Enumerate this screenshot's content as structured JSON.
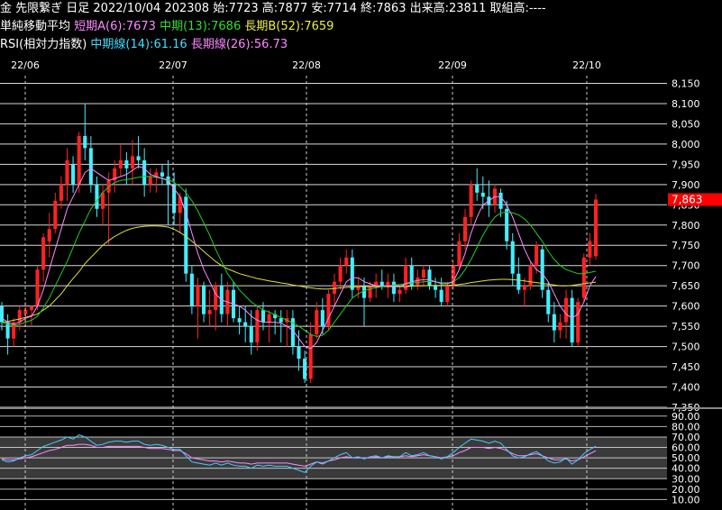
{
  "header": {
    "line1": "金 先限繋ぎ 日足 2022/10/04 202308 始:7723 高:7877 安:7714 終:7863 出来高:23811 取組高:----",
    "line2_title": "単純移動平均",
    "ma_short": "短期A(6):7673",
    "ma_mid": "中期(13):7686",
    "ma_long": "長期B(52):7659",
    "line3_title": "RSI(相対力指数)",
    "rsi_mid": "中期線(14):61.16",
    "rsi_long": "長期線(26):56.73"
  },
  "x_labels": [
    "22/06",
    "22/07",
    "22/08",
    "22/09",
    "22/10"
  ],
  "price_axis_labels": [
    "8,150",
    "8,100",
    "8,050",
    "8,000",
    "7,950",
    "7,900",
    "7,850",
    "7,800",
    "7,750",
    "7,700",
    "7,650",
    "7,600",
    "7,550",
    "7,500",
    "7,450",
    "7,400",
    "7,350"
  ],
  "rsi_axis_labels": [
    "90.00",
    "80.00",
    "70.00",
    "60.00",
    "50.00",
    "40.00",
    "30.00",
    "20.00",
    "10.00"
  ],
  "last_price_label": "7,863",
  "colors": {
    "up": "#ff2222",
    "down": "#44eeff",
    "ma_short": "#ff88ff",
    "ma_mid": "#22cc22",
    "ma_long": "#dddd44",
    "rsi_mid": "#44ccff",
    "rsi_long": "#ff88ff",
    "grid": "#ffffff",
    "price_tag": "#ff0000"
  },
  "chart_data": {
    "type": "candlestick",
    "ylim": [
      7350,
      8160
    ],
    "rsi_ylim": [
      0,
      95
    ],
    "candles": [
      [
        7600,
        7610,
        7540,
        7560
      ],
      [
        7560,
        7580,
        7480,
        7520
      ],
      [
        7520,
        7570,
        7500,
        7560
      ],
      [
        7560,
        7600,
        7540,
        7590
      ],
      [
        7580,
        7610,
        7550,
        7590
      ],
      [
        7590,
        7600,
        7550,
        7600
      ],
      [
        7600,
        7700,
        7590,
        7690
      ],
      [
        7690,
        7780,
        7660,
        7770
      ],
      [
        7760,
        7830,
        7720,
        7790
      ],
      [
        7790,
        7880,
        7780,
        7860
      ],
      [
        7860,
        7920,
        7840,
        7900
      ],
      [
        7900,
        7990,
        7860,
        7960
      ],
      [
        7950,
        7970,
        7880,
        7900
      ],
      [
        7900,
        8030,
        7880,
        8020
      ],
      [
        8020,
        8100,
        7960,
        7990
      ],
      [
        7990,
        8020,
        7880,
        7900
      ],
      [
        7900,
        7920,
        7820,
        7840
      ],
      [
        7840,
        7900,
        7800,
        7880
      ],
      [
        7880,
        7930,
        7750,
        7910
      ],
      [
        7910,
        7960,
        7880,
        7940
      ],
      [
        7940,
        8000,
        7920,
        7960
      ],
      [
        7960,
        7980,
        7900,
        7940
      ],
      [
        7940,
        8010,
        7900,
        7970
      ],
      [
        7970,
        8020,
        7940,
        7960
      ],
      [
        7960,
        7990,
        7870,
        7900
      ],
      [
        7900,
        7940,
        7880,
        7920
      ],
      [
        7920,
        7940,
        7880,
        7930
      ],
      [
        7930,
        7950,
        7900,
        7920
      ],
      [
        7920,
        7960,
        7800,
        7900
      ],
      [
        7900,
        7930,
        7800,
        7830
      ],
      [
        7830,
        7880,
        7780,
        7870
      ],
      [
        7870,
        7890,
        7660,
        7680
      ],
      [
        7680,
        7700,
        7580,
        7600
      ],
      [
        7600,
        7670,
        7520,
        7650
      ],
      [
        7650,
        7660,
        7560,
        7580
      ],
      [
        7580,
        7640,
        7550,
        7590
      ],
      [
        7590,
        7660,
        7540,
        7650
      ],
      [
        7650,
        7680,
        7560,
        7580
      ],
      [
        7580,
        7660,
        7550,
        7640
      ],
      [
        7640,
        7660,
        7560,
        7570
      ],
      [
        7570,
        7600,
        7530,
        7560
      ],
      [
        7560,
        7600,
        7510,
        7550
      ],
      [
        7550,
        7590,
        7480,
        7510
      ],
      [
        7510,
        7600,
        7490,
        7590
      ],
      [
        7590,
        7610,
        7540,
        7560
      ],
      [
        7560,
        7590,
        7510,
        7580
      ],
      [
        7580,
        7590,
        7530,
        7570
      ],
      [
        7570,
        7590,
        7510,
        7560
      ],
      [
        7560,
        7590,
        7500,
        7570
      ],
      [
        7570,
        7590,
        7480,
        7500
      ],
      [
        7500,
        7540,
        7440,
        7470
      ],
      [
        7470,
        7490,
        7410,
        7420
      ],
      [
        7420,
        7560,
        7410,
        7530
      ],
      [
        7530,
        7610,
        7520,
        7590
      ],
      [
        7590,
        7620,
        7530,
        7550
      ],
      [
        7550,
        7640,
        7540,
        7630
      ],
      [
        7630,
        7680,
        7600,
        7660
      ],
      [
        7660,
        7720,
        7640,
        7700
      ],
      [
        7700,
        7740,
        7680,
        7720
      ],
      [
        7720,
        7740,
        7620,
        7640
      ],
      [
        7640,
        7670,
        7620,
        7650
      ],
      [
        7650,
        7670,
        7550,
        7620
      ],
      [
        7620,
        7660,
        7610,
        7650
      ],
      [
        7650,
        7680,
        7620,
        7660
      ],
      [
        7660,
        7690,
        7640,
        7650
      ],
      [
        7650,
        7680,
        7620,
        7660
      ],
      [
        7660,
        7680,
        7610,
        7630
      ],
      [
        7630,
        7650,
        7610,
        7640
      ],
      [
        7640,
        7720,
        7630,
        7700
      ],
      [
        7700,
        7720,
        7640,
        7650
      ],
      [
        7650,
        7690,
        7640,
        7670
      ],
      [
        7670,
        7700,
        7650,
        7690
      ],
      [
        7690,
        7700,
        7640,
        7650
      ],
      [
        7650,
        7670,
        7620,
        7640
      ],
      [
        7640,
        7670,
        7600,
        7610
      ],
      [
        7610,
        7660,
        7600,
        7650
      ],
      [
        7650,
        7710,
        7640,
        7700
      ],
      [
        7700,
        7780,
        7690,
        7760
      ],
      [
        7760,
        7840,
        7740,
        7820
      ],
      [
        7820,
        7910,
        7800,
        7900
      ],
      [
        7900,
        7940,
        7860,
        7880
      ],
      [
        7880,
        7920,
        7840,
        7870
      ],
      [
        7870,
        7910,
        7820,
        7850
      ],
      [
        7850,
        7900,
        7830,
        7890
      ],
      [
        7880,
        7890,
        7820,
        7840
      ],
      [
        7840,
        7860,
        7740,
        7760
      ],
      [
        7760,
        7780,
        7650,
        7680
      ],
      [
        7680,
        7720,
        7630,
        7640
      ],
      [
        7640,
        7670,
        7600,
        7650
      ],
      [
        7650,
        7710,
        7640,
        7700
      ],
      [
        7700,
        7760,
        7680,
        7750
      ],
      [
        7740,
        7750,
        7620,
        7640
      ],
      [
        7640,
        7660,
        7560,
        7580
      ],
      [
        7580,
        7610,
        7510,
        7540
      ],
      [
        7540,
        7580,
        7520,
        7560
      ],
      [
        7560,
        7640,
        7520,
        7620
      ],
      [
        7620,
        7640,
        7500,
        7510
      ],
      [
        7510,
        7620,
        7500,
        7610
      ],
      [
        7620,
        7730,
        7610,
        7720
      ],
      [
        7720,
        7780,
        7700,
        7760
      ],
      [
        7723,
        7877,
        7714,
        7863
      ]
    ],
    "ma_short": [
      7570,
      7560,
      7555,
      7560,
      7570,
      7575,
      7600,
      7640,
      7690,
      7740,
      7790,
      7840,
      7870,
      7900,
      7930,
      7940,
      7930,
      7920,
      7910,
      7915,
      7920,
      7925,
      7935,
      7945,
      7940,
      7925,
      7920,
      7915,
      7910,
      7890,
      7870,
      7830,
      7780,
      7730,
      7690,
      7660,
      7630,
      7615,
      7610,
      7605,
      7600,
      7590,
      7575,
      7565,
      7560,
      7560,
      7560,
      7558,
      7550,
      7540,
      7520,
      7500,
      7495,
      7510,
      7540,
      7570,
      7600,
      7630,
      7660,
      7670,
      7670,
      7660,
      7655,
      7650,
      7650,
      7650,
      7648,
      7648,
      7655,
      7660,
      7663,
      7665,
      7665,
      7660,
      7655,
      7655,
      7660,
      7690,
      7730,
      7780,
      7820,
      7850,
      7860,
      7870,
      7870,
      7850,
      7820,
      7780,
      7740,
      7710,
      7690,
      7680,
      7660,
      7630,
      7600,
      7580,
      7570,
      7580,
      7610,
      7650,
      7673
    ],
    "ma_mid": [
      7560,
      7555,
      7552,
      7555,
      7560,
      7565,
      7575,
      7595,
      7620,
      7650,
      7680,
      7710,
      7745,
      7780,
      7810,
      7840,
      7860,
      7880,
      7895,
      7905,
      7910,
      7912,
      7915,
      7918,
      7920,
      7920,
      7918,
      7915,
      7912,
      7905,
      7895,
      7880,
      7860,
      7835,
      7805,
      7775,
      7740,
      7710,
      7680,
      7660,
      7640,
      7625,
      7610,
      7600,
      7590,
      7585,
      7578,
      7572,
      7565,
      7558,
      7550,
      7540,
      7530,
      7525,
      7528,
      7540,
      7560,
      7580,
      7600,
      7620,
      7630,
      7638,
      7642,
      7645,
      7648,
      7650,
      7652,
      7653,
      7655,
      7657,
      7658,
      7660,
      7661,
      7660,
      7658,
      7657,
      7660,
      7670,
      7690,
      7715,
      7745,
      7775,
      7800,
      7820,
      7830,
      7832,
      7830,
      7825,
      7815,
      7800,
      7780,
      7760,
      7735,
      7715,
      7700,
      7690,
      7685,
      7680,
      7680,
      7683,
      7686
    ],
    "ma_long": [
      7560,
      7562,
      7565,
      7568,
      7572,
      7576,
      7580,
      7590,
      7600,
      7615,
      7630,
      7650,
      7668,
      7685,
      7705,
      7720,
      7735,
      7750,
      7762,
      7772,
      7780,
      7787,
      7792,
      7795,
      7797,
      7798,
      7798,
      7797,
      7795,
      7790,
      7782,
      7772,
      7760,
      7748,
      7735,
      7722,
      7710,
      7700,
      7692,
      7686,
      7680,
      7676,
      7672,
      7668,
      7665,
      7662,
      7660,
      7657,
      7655,
      7652,
      7650,
      7647,
      7645,
      7643,
      7642,
      7642,
      7643,
      7645,
      7646,
      7647,
      7648,
      7648,
      7648,
      7648,
      7648,
      7648,
      7648,
      7648,
      7648,
      7649,
      7650,
      7650,
      7651,
      7651,
      7651,
      7651,
      7652,
      7653,
      7655,
      7658,
      7660,
      7662,
      7664,
      7665,
      7666,
      7666,
      7665,
      7664,
      7662,
      7660,
      7658,
      7656,
      7654,
      7652,
      7650,
      7650,
      7651,
      7653,
      7655,
      7657,
      7659
    ],
    "rsi_mid": [
      48,
      46,
      47,
      50,
      52,
      53,
      57,
      61,
      63,
      65,
      67,
      70,
      68,
      72,
      70,
      66,
      62,
      63,
      65,
      66,
      66,
      65,
      66,
      66,
      63,
      62,
      63,
      62,
      60,
      58,
      58,
      52,
      46,
      45,
      44,
      43,
      45,
      43,
      45,
      43,
      42,
      42,
      40,
      43,
      42,
      43,
      42,
      42,
      42,
      40,
      38,
      36,
      42,
      46,
      44,
      47,
      50,
      53,
      55,
      50,
      51,
      49,
      51,
      52,
      50,
      52,
      51,
      51,
      55,
      52,
      53,
      55,
      52,
      51,
      49,
      51,
      55,
      60,
      64,
      68,
      67,
      66,
      64,
      66,
      64,
      58,
      52,
      50,
      51,
      54,
      56,
      52,
      47,
      45,
      46,
      50,
      44,
      48,
      54,
      58,
      61.16
    ],
    "rsi_long": [
      49,
      48,
      48,
      49,
      50,
      51,
      53,
      55,
      57,
      58,
      60,
      62,
      62,
      63,
      63,
      62,
      60,
      60,
      61,
      61,
      61,
      61,
      61,
      61,
      60,
      59,
      59,
      59,
      58,
      57,
      57,
      54,
      50,
      49,
      48,
      47,
      47,
      46,
      47,
      46,
      45,
      45,
      44,
      45,
      45,
      45,
      45,
      45,
      45,
      44,
      43,
      42,
      44,
      46,
      45,
      47,
      48,
      50,
      51,
      50,
      50,
      50,
      50,
      51,
      50,
      51,
      51,
      51,
      52,
      51,
      52,
      53,
      52,
      51,
      50,
      51,
      52,
      55,
      57,
      60,
      60,
      60,
      59,
      60,
      59,
      57,
      54,
      52,
      52,
      53,
      54,
      52,
      50,
      48,
      48,
      49,
      47,
      48,
      51,
      54,
      56.73
    ]
  }
}
